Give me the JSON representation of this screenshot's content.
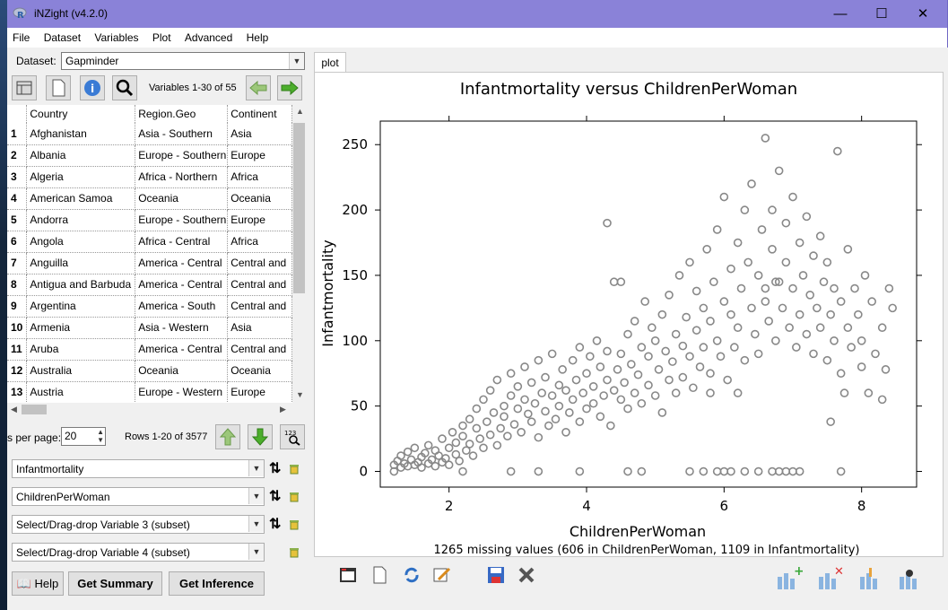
{
  "window": {
    "title": "iNZight (v4.2.0)",
    "minimize": "—",
    "maximize": "☐",
    "close": "✕"
  },
  "menu": [
    "File",
    "Dataset",
    "Variables",
    "Plot",
    "Advanced",
    "Help"
  ],
  "dataset": {
    "label": "Dataset:",
    "value": "Gapminder"
  },
  "var_nav": {
    "text": "Variables 1-30 of 55"
  },
  "table": {
    "columns": [
      "Country",
      "Region.Geo",
      "Continent"
    ],
    "rows": [
      [
        "1",
        "Afghanistan",
        "Asia - Southern",
        "Asia"
      ],
      [
        "2",
        "Albania",
        "Europe - Southern",
        "Europe"
      ],
      [
        "3",
        "Algeria",
        "Africa - Northern",
        "Africa"
      ],
      [
        "4",
        "American Samoa",
        "Oceania",
        "Oceania"
      ],
      [
        "5",
        "Andorra",
        "Europe - Southern",
        "Europe"
      ],
      [
        "6",
        "Angola",
        "Africa - Central",
        "Africa"
      ],
      [
        "7",
        "Anguilla",
        "America - Central",
        "Central and"
      ],
      [
        "8",
        "Antigua and Barbuda",
        "America - Central",
        "Central and"
      ],
      [
        "9",
        "Argentina",
        "America - South",
        "Central and"
      ],
      [
        "10",
        "Armenia",
        "Asia - Western",
        "Asia"
      ],
      [
        "11",
        "Aruba",
        "America - Central",
        "Central and"
      ],
      [
        "12",
        "Australia",
        "Oceania",
        "Oceania"
      ],
      [
        "13",
        "Austria",
        "Europe - Western",
        "Europe"
      ]
    ]
  },
  "paging": {
    "label": "s per page:",
    "value": "20",
    "rows_info": "Rows 1-20 of 3577"
  },
  "variables": {
    "v1": "Infantmortality",
    "v2": "ChildrenPerWoman",
    "v3": "Select/Drag-drop Variable 3 (subset)",
    "v4": "Select/Drag-drop Variable 4 (subset)"
  },
  "buttons": {
    "help": "Help",
    "summary": "Get Summary",
    "inference": "Get Inference"
  },
  "plot_tab": "plot",
  "chart_data": {
    "type": "scatter",
    "title": "Infantmortality versus ChildrenPerWoman",
    "xlabel": "ChildrenPerWoman",
    "ylabel": "Infantmortality",
    "xlim": [
      1.0,
      8.8
    ],
    "ylim": [
      -12,
      268
    ],
    "xticks": [
      2,
      4,
      6,
      8
    ],
    "yticks": [
      0,
      50,
      100,
      150,
      200,
      250
    ],
    "footnote": "1265 missing values (606 in ChildrenPerWoman, 1109 in Infantmortality)",
    "marker_color": "#888888",
    "points": [
      [
        1.2,
        5
      ],
      [
        1.25,
        8
      ],
      [
        1.3,
        3
      ],
      [
        1.3,
        12
      ],
      [
        1.35,
        6
      ],
      [
        1.4,
        4
      ],
      [
        1.4,
        15
      ],
      [
        1.45,
        9
      ],
      [
        1.5,
        5
      ],
      [
        1.5,
        18
      ],
      [
        1.55,
        7
      ],
      [
        1.6,
        11
      ],
      [
        1.6,
        3
      ],
      [
        1.65,
        14
      ],
      [
        1.7,
        6
      ],
      [
        1.7,
        20
      ],
      [
        1.75,
        9
      ],
      [
        1.8,
        4
      ],
      [
        1.8,
        16
      ],
      [
        1.85,
        12
      ],
      [
        1.9,
        7
      ],
      [
        1.9,
        25
      ],
      [
        1.95,
        10
      ],
      [
        2.0,
        5
      ],
      [
        2.0,
        18
      ],
      [
        2.05,
        30
      ],
      [
        2.1,
        13
      ],
      [
        2.1,
        22
      ],
      [
        2.15,
        8
      ],
      [
        2.2,
        27
      ],
      [
        2.2,
        35
      ],
      [
        2.25,
        16
      ],
      [
        2.3,
        40
      ],
      [
        2.3,
        21
      ],
      [
        2.35,
        12
      ],
      [
        2.4,
        33
      ],
      [
        2.4,
        48
      ],
      [
        2.45,
        25
      ],
      [
        2.5,
        18
      ],
      [
        2.5,
        55
      ],
      [
        2.55,
        38
      ],
      [
        2.6,
        28
      ],
      [
        2.6,
        62
      ],
      [
        2.65,
        45
      ],
      [
        2.7,
        20
      ],
      [
        2.7,
        70
      ],
      [
        2.75,
        33
      ],
      [
        2.8,
        50
      ],
      [
        2.8,
        42
      ],
      [
        2.85,
        27
      ],
      [
        2.9,
        58
      ],
      [
        2.9,
        75
      ],
      [
        2.95,
        36
      ],
      [
        3.0,
        48
      ],
      [
        3.0,
        65
      ],
      [
        3.05,
        30
      ],
      [
        3.1,
        55
      ],
      [
        3.1,
        80
      ],
      [
        3.15,
        44
      ],
      [
        3.2,
        38
      ],
      [
        3.2,
        68
      ],
      [
        3.25,
        52
      ],
      [
        3.3,
        26
      ],
      [
        3.3,
        85
      ],
      [
        3.35,
        60
      ],
      [
        3.4,
        46
      ],
      [
        3.4,
        72
      ],
      [
        3.45,
        35
      ],
      [
        3.5,
        58
      ],
      [
        3.5,
        90
      ],
      [
        3.55,
        40
      ],
      [
        3.6,
        66
      ],
      [
        3.6,
        50
      ],
      [
        3.65,
        78
      ],
      [
        3.7,
        30
      ],
      [
        3.7,
        62
      ],
      [
        3.75,
        45
      ],
      [
        3.8,
        85
      ],
      [
        3.8,
        55
      ],
      [
        3.85,
        70
      ],
      [
        3.9,
        38
      ],
      [
        3.9,
        95
      ],
      [
        3.95,
        60
      ],
      [
        4.0,
        48
      ],
      [
        4.0,
        75
      ],
      [
        4.05,
        88
      ],
      [
        4.1,
        52
      ],
      [
        4.1,
        65
      ],
      [
        4.15,
        100
      ],
      [
        4.2,
        42
      ],
      [
        4.2,
        80
      ],
      [
        4.25,
        58
      ],
      [
        4.3,
        70
      ],
      [
        4.3,
        92
      ],
      [
        4.35,
        35
      ],
      [
        4.4,
        62
      ],
      [
        4.4,
        145
      ],
      [
        4.45,
        78
      ],
      [
        4.5,
        55
      ],
      [
        4.5,
        90
      ],
      [
        4.55,
        68
      ],
      [
        4.6,
        105
      ],
      [
        4.6,
        48
      ],
      [
        4.65,
        82
      ],
      [
        4.7,
        60
      ],
      [
        4.7,
        115
      ],
      [
        4.75,
        74
      ],
      [
        4.8,
        95
      ],
      [
        4.8,
        52
      ],
      [
        4.85,
        130
      ],
      [
        4.9,
        66
      ],
      [
        4.9,
        88
      ],
      [
        4.95,
        110
      ],
      [
        5.0,
        58
      ],
      [
        5.0,
        100
      ],
      [
        5.05,
        78
      ],
      [
        5.1,
        120
      ],
      [
        5.1,
        45
      ],
      [
        5.15,
        92
      ],
      [
        5.2,
        70
      ],
      [
        5.2,
        135
      ],
      [
        5.25,
        84
      ],
      [
        5.3,
        105
      ],
      [
        5.3,
        60
      ],
      [
        5.35,
        150
      ],
      [
        5.4,
        96
      ],
      [
        5.4,
        72
      ],
      [
        5.45,
        118
      ],
      [
        5.5,
        88
      ],
      [
        5.5,
        160
      ],
      [
        5.55,
        64
      ],
      [
        5.6,
        108
      ],
      [
        5.6,
        138
      ],
      [
        5.65,
        80
      ],
      [
        5.7,
        125
      ],
      [
        5.7,
        95
      ],
      [
        5.75,
        170
      ],
      [
        5.8,
        75
      ],
      [
        5.8,
        115
      ],
      [
        5.85,
        145
      ],
      [
        5.9,
        100
      ],
      [
        5.9,
        185
      ],
      [
        5.95,
        88
      ],
      [
        6.0,
        130
      ],
      [
        6.0,
        210
      ],
      [
        6.05,
        70
      ],
      [
        6.1,
        120
      ],
      [
        6.1,
        155
      ],
      [
        6.15,
        95
      ],
      [
        6.2,
        175
      ],
      [
        6.2,
        110
      ],
      [
        6.25,
        140
      ],
      [
        6.3,
        200
      ],
      [
        6.3,
        85
      ],
      [
        6.35,
        160
      ],
      [
        6.4,
        125
      ],
      [
        6.4,
        220
      ],
      [
        6.45,
        105
      ],
      [
        6.5,
        150
      ],
      [
        6.5,
        90
      ],
      [
        6.55,
        185
      ],
      [
        6.6,
        130
      ],
      [
        6.6,
        255
      ],
      [
        6.65,
        115
      ],
      [
        6.7,
        170
      ],
      [
        6.7,
        200
      ],
      [
        6.75,
        100
      ],
      [
        6.8,
        145
      ],
      [
        6.8,
        230
      ],
      [
        6.85,
        125
      ],
      [
        6.9,
        160
      ],
      [
        6.9,
        190
      ],
      [
        6.95,
        110
      ],
      [
        7.0,
        140
      ],
      [
        7.0,
        210
      ],
      [
        7.05,
        95
      ],
      [
        7.1,
        175
      ],
      [
        7.1,
        120
      ],
      [
        7.15,
        150
      ],
      [
        7.2,
        105
      ],
      [
        7.2,
        195
      ],
      [
        7.25,
        135
      ],
      [
        7.3,
        165
      ],
      [
        7.3,
        90
      ],
      [
        7.35,
        125
      ],
      [
        7.4,
        180
      ],
      [
        7.4,
        110
      ],
      [
        7.45,
        145
      ],
      [
        7.5,
        85
      ],
      [
        7.5,
        160
      ],
      [
        7.55,
        120
      ],
      [
        7.6,
        100
      ],
      [
        7.6,
        140
      ],
      [
        7.65,
        245
      ],
      [
        7.7,
        75
      ],
      [
        7.7,
        130
      ],
      [
        7.75,
        60
      ],
      [
        7.8,
        110
      ],
      [
        7.8,
        170
      ],
      [
        7.85,
        95
      ],
      [
        7.9,
        140
      ],
      [
        7.95,
        120
      ],
      [
        8.0,
        80
      ],
      [
        8.0,
        100
      ],
      [
        8.05,
        150
      ],
      [
        8.1,
        60
      ],
      [
        8.15,
        130
      ],
      [
        8.2,
        90
      ],
      [
        8.3,
        55
      ],
      [
        8.3,
        110
      ],
      [
        8.4,
        140
      ],
      [
        8.45,
        125
      ],
      [
        8.35,
        78
      ],
      [
        4.3,
        190
      ],
      [
        4.5,
        145
      ],
      [
        6.0,
        0
      ],
      [
        6.1,
        0
      ],
      [
        6.7,
        0
      ],
      [
        6.9,
        0
      ],
      [
        7.0,
        0
      ],
      [
        7.7,
        0
      ],
      [
        5.5,
        0
      ],
      [
        6.3,
        0
      ],
      [
        4.6,
        0
      ],
      [
        4.8,
        0
      ],
      [
        2.9,
        0
      ],
      [
        3.3,
        0
      ],
      [
        3.9,
        0
      ],
      [
        1.2,
        0
      ],
      [
        2.2,
        0
      ],
      [
        5.7,
        0
      ],
      [
        5.9,
        0
      ],
      [
        6.5,
        0
      ],
      [
        6.8,
        0
      ],
      [
        7.1,
        0
      ],
      [
        7.55,
        38
      ],
      [
        6.6,
        140
      ],
      [
        6.75,
        145
      ],
      [
        6.2,
        60
      ],
      [
        5.8,
        60
      ]
    ]
  }
}
